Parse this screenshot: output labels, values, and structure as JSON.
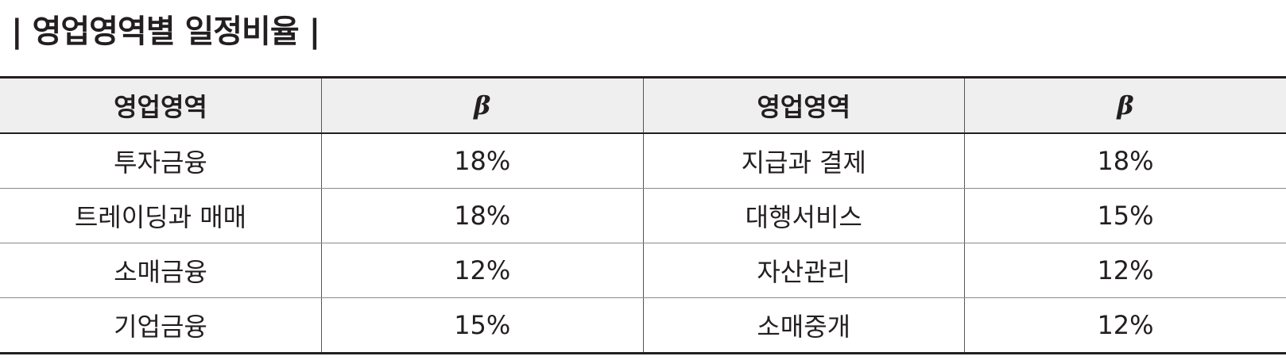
{
  "title": "| 영업영역별 일정비율 |",
  "table": {
    "headers": [
      "영업영역",
      "β",
      "영업영역",
      "β"
    ],
    "rows": [
      [
        "투자금융",
        "18%",
        "지급과 결제",
        "18%"
      ],
      [
        "트레이딩과 매매",
        "18%",
        "대행서비스",
        "15%"
      ],
      [
        "소매금융",
        "12%",
        "자산관리",
        "12%"
      ],
      [
        "기업금융",
        "15%",
        "소매중개",
        "12%"
      ]
    ]
  }
}
